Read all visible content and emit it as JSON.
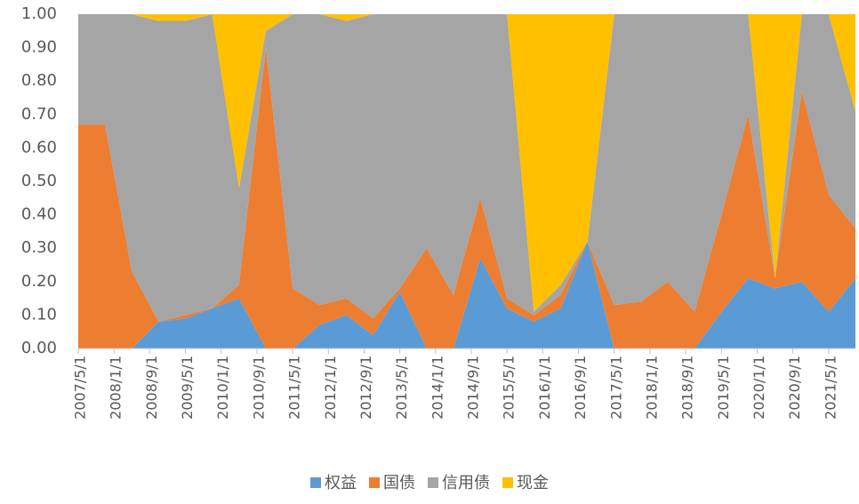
{
  "chart_data": {
    "type": "stacked_area",
    "x": [
      "2007/5/1",
      "2007/11/1",
      "2008/5/1",
      "2008/11/1",
      "2009/5/1",
      "2009/11/1",
      "2010/5/1",
      "2010/11/1",
      "2011/5/1",
      "2011/11/1",
      "2012/5/1",
      "2012/11/1",
      "2013/5/1",
      "2013/11/1",
      "2014/5/1",
      "2014/11/1",
      "2015/5/1",
      "2015/11/1",
      "2016/5/1",
      "2016/11/1",
      "2017/5/1",
      "2017/11/1",
      "2018/5/1",
      "2018/11/1",
      "2019/5/1",
      "2019/11/1",
      "2020/5/1",
      "2020/11/1",
      "2021/5/1",
      "2021/11/1"
    ],
    "xlim": [
      "2007/5/1",
      "2021/11/1"
    ],
    "xticks": [
      "2007/5/1",
      "2008/1/1",
      "2008/9/1",
      "2009/5/1",
      "2010/1/1",
      "2010/9/1",
      "2011/5/1",
      "2012/1/1",
      "2012/9/1",
      "2013/5/1",
      "2014/1/1",
      "2014/9/1",
      "2015/5/1",
      "2016/1/1",
      "2016/9/1",
      "2017/5/1",
      "2018/1/1",
      "2018/9/1",
      "2019/5/1",
      "2020/1/1",
      "2020/9/1",
      "2021/5/1"
    ],
    "ylim": [
      0,
      1
    ],
    "yticks": [
      {
        "value": 0,
        "label": "0.00"
      },
      {
        "value": 0.1,
        "label": "0.10"
      },
      {
        "value": 0.2,
        "label": "0.20"
      },
      {
        "value": 0.3,
        "label": "0.30"
      },
      {
        "value": 0.4,
        "label": "0.40"
      },
      {
        "value": 0.5,
        "label": "0.50"
      },
      {
        "value": 0.6,
        "label": "0.60"
      },
      {
        "value": 0.7,
        "label": "0.70"
      },
      {
        "value": 0.8,
        "label": "0.80"
      },
      {
        "value": 0.9,
        "label": "0.90"
      },
      {
        "value": 1,
        "label": "1.00"
      }
    ],
    "legend": "bottom",
    "series": [
      {
        "name": "权益",
        "color": "#5B9BD5",
        "values": [
          0,
          0,
          0,
          0.08,
          0.09,
          0.12,
          0.15,
          0,
          0,
          0.07,
          0.1,
          0.04,
          0.17,
          0,
          0,
          0.27,
          0.12,
          0.08,
          0.12,
          0.32,
          0,
          0,
          0,
          0,
          0.11,
          0.21,
          0.18,
          0.2,
          0.11,
          0.21
        ]
      },
      {
        "name": "国债",
        "color": "#ED7D31",
        "values": [
          0.67,
          0.67,
          0.23,
          0,
          0.01,
          0,
          0.04,
          0.9,
          0.18,
          0.06,
          0.05,
          0.05,
          0.01,
          0.3,
          0.16,
          0.18,
          0.03,
          0.02,
          0.04,
          0,
          0.13,
          0.14,
          0.2,
          0.11,
          0.29,
          0.49,
          0.03,
          0.57,
          0.35,
          0.15
        ]
      },
      {
        "name": "信用债",
        "color": "#A5A5A5",
        "values": [
          0.33,
          0.33,
          0.77,
          0.9,
          0.88,
          0.88,
          0.29,
          0.05,
          0.82,
          0.87,
          0.83,
          0.91,
          0.82,
          0.7,
          0.84,
          0.55,
          0.85,
          0.01,
          0.03,
          0,
          0.87,
          0.86,
          0.8,
          0.89,
          0.6,
          0.3,
          0,
          0.23,
          0.54,
          0.35
        ]
      },
      {
        "name": "现金",
        "color": "#FFC000",
        "values": [
          0,
          0,
          0,
          0.02,
          0.02,
          0,
          0.52,
          0.05,
          0,
          0,
          0.02,
          0,
          0,
          0,
          0,
          0,
          0,
          0.89,
          0.81,
          0.68,
          0,
          0,
          0,
          0,
          0,
          0,
          0.79,
          0,
          0,
          0.29
        ]
      }
    ]
  }
}
